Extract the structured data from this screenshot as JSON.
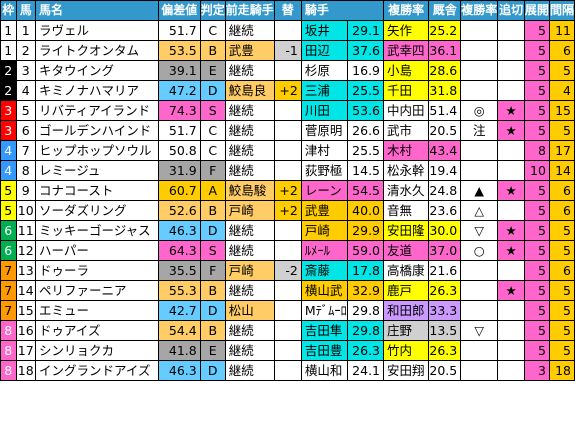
{
  "colors": {
    "header_bg": "#3399cc",
    "rank_S": "#ff66cc",
    "rank_A": "#ffcc00",
    "rank_B": "#ffcc66",
    "rank_C": "#ffffff",
    "rank_D": "#66ccff",
    "rank_F": "#a6a6a6",
    "jockey_top": "#00e5e5",
    "jockey_mid": "#ffcc00",
    "jockey_pink": "#ff66cc",
    "jockey_lilac": "#cc99ff",
    "trainer_top": "#ffcc00",
    "trainer_mid": "#ff66cc",
    "trainer_gray": "#d0d0d0",
    "trainer_yellow": "#ffff00",
    "pos_top": "#ff66cc",
    "pos_mid": "#ffcc00",
    "gap_top": "#ffcc00",
    "tenkai_bg": "#ff66cc"
  },
  "header": {
    "waku": "枠",
    "uma": "馬",
    "name": "馬名",
    "hensa": "偏差値",
    "hantei": "判定",
    "zenso": "前走騎手",
    "kawari": "替",
    "kishu": "騎手",
    "kishu_rate": "複勝率",
    "kyusha": "厩舎",
    "kyusha_rate": "複勝率",
    "oikiri": "追切",
    "tenkai": "展開",
    "kankaku": "間隔"
  },
  "rows": [
    {
      "waku": "1",
      "uma": "1",
      "name": "ラヴェル",
      "hensa": "51.7",
      "hantei": "C",
      "zenso": "継続",
      "kawari": "",
      "kishu": "坂井",
      "kishu_rate": "29.1",
      "kyusha": "矢作",
      "kyusha_rate": "25.2",
      "oikiri": "",
      "tenkai": "",
      "pos": "5",
      "gap": "11"
    },
    {
      "waku": "1",
      "uma": "2",
      "name": "ライトクオンタム",
      "hensa": "53.5",
      "hantei": "B",
      "zenso": "武豊",
      "kawari": "-1",
      "kishu": "田辺",
      "kishu_rate": "37.6",
      "kyusha": "武幸四",
      "kyusha_rate": "36.1",
      "oikiri": "",
      "tenkai": "",
      "pos": "5",
      "gap": "6"
    },
    {
      "waku": "2",
      "uma": "3",
      "name": "キタウイング",
      "hensa": "39.1",
      "hantei": "E",
      "zenso": "継続",
      "kawari": "",
      "kishu": "杉原",
      "kishu_rate": "16.9",
      "kyusha": "小島",
      "kyusha_rate": "28.6",
      "oikiri": "",
      "tenkai": "",
      "pos": "5",
      "gap": "5"
    },
    {
      "waku": "2",
      "uma": "4",
      "name": "キミノナハマリア",
      "hensa": "47.2",
      "hantei": "D",
      "zenso": "鮫島良",
      "kawari": "+2",
      "kishu": "三浦",
      "kishu_rate": "25.5",
      "kyusha": "千田",
      "kyusha_rate": "31.8",
      "oikiri": "",
      "tenkai": "",
      "pos": "5",
      "gap": "4"
    },
    {
      "waku": "3",
      "uma": "5",
      "name": "リバティアイランド",
      "hensa": "74.3",
      "hantei": "S",
      "zenso": "継続",
      "kawari": "",
      "kishu": "川田",
      "kishu_rate": "53.6",
      "kyusha": "中内田",
      "kyusha_rate": "51.4",
      "oikiri": "◎",
      "tenkai": "★",
      "pos": "5",
      "gap": "15"
    },
    {
      "waku": "3",
      "uma": "6",
      "name": "ゴールデンハインド",
      "hensa": "51.7",
      "hantei": "C",
      "zenso": "継続",
      "kawari": "",
      "kishu": "菅原明",
      "kishu_rate": "26.6",
      "kyusha": "武市",
      "kyusha_rate": "20.5",
      "oikiri": "注",
      "tenkai": "★",
      "pos": "5",
      "gap": "5"
    },
    {
      "waku": "4",
      "uma": "7",
      "name": "ヒップホップソウル",
      "hensa": "50.8",
      "hantei": "C",
      "zenso": "継続",
      "kawari": "",
      "kishu": "津村",
      "kishu_rate": "25.5",
      "kyusha": "木村",
      "kyusha_rate": "43.4",
      "oikiri": "",
      "tenkai": "",
      "pos": "8",
      "gap": "17"
    },
    {
      "waku": "4",
      "uma": "8",
      "name": "レミージュ",
      "hensa": "31.9",
      "hantei": "F",
      "zenso": "継続",
      "kawari": "",
      "kishu": "荻野極",
      "kishu_rate": "14.5",
      "kyusha": "松永幹",
      "kyusha_rate": "19.4",
      "oikiri": "",
      "tenkai": "",
      "pos": "10",
      "gap": "14"
    },
    {
      "waku": "5",
      "uma": "9",
      "name": "コナコースト",
      "hensa": "60.7",
      "hantei": "A",
      "zenso": "鮫島駿",
      "kawari": "+2",
      "kishu": "レーン",
      "kishu_rate": "54.5",
      "kyusha": "清水久",
      "kyusha_rate": "24.8",
      "oikiri": "▲",
      "tenkai": "★",
      "pos": "5",
      "gap": "6"
    },
    {
      "waku": "5",
      "uma": "10",
      "name": "ソーダズリング",
      "hensa": "52.6",
      "hantei": "B",
      "zenso": "戸崎",
      "kawari": "+2",
      "kishu": "武豊",
      "kishu_rate": "40.0",
      "kyusha": "音無",
      "kyusha_rate": "23.6",
      "oikiri": "△",
      "tenkai": "",
      "pos": "5",
      "gap": "6"
    },
    {
      "waku": "6",
      "uma": "11",
      "name": "ミッキーゴージャス",
      "hensa": "46.3",
      "hantei": "D",
      "zenso": "継続",
      "kawari": "",
      "kishu": "戸崎",
      "kishu_rate": "29.9",
      "kyusha": "安田隆",
      "kyusha_rate": "30.0",
      "oikiri": "▽",
      "tenkai": "★",
      "pos": "5",
      "gap": "5"
    },
    {
      "waku": "6",
      "uma": "12",
      "name": "ハーパー",
      "hensa": "64.3",
      "hantei": "S",
      "zenso": "継続",
      "kawari": "",
      "kishu": "ﾙﾒｰﾙ",
      "kishu_rate": "59.0",
      "kyusha": "友道",
      "kyusha_rate": "37.0",
      "oikiri": "○",
      "tenkai": "★",
      "pos": "5",
      "gap": "5"
    },
    {
      "waku": "7",
      "uma": "13",
      "name": "ドゥーラ",
      "hensa": "35.5",
      "hantei": "F",
      "zenso": "戸崎",
      "kawari": "-2",
      "kishu": "斎藤",
      "kishu_rate": "17.8",
      "kyusha": "高橋康",
      "kyusha_rate": "21.6",
      "oikiri": "",
      "tenkai": "",
      "pos": "5",
      "gap": "6"
    },
    {
      "waku": "7",
      "uma": "14",
      "name": "ペリファーニア",
      "hensa": "55.3",
      "hantei": "B",
      "zenso": "継続",
      "kawari": "",
      "kishu": "横山武",
      "kishu_rate": "32.9",
      "kyusha": "鹿戸",
      "kyusha_rate": "26.3",
      "oikiri": "",
      "tenkai": "★",
      "pos": "5",
      "gap": "5"
    },
    {
      "waku": "7",
      "uma": "15",
      "name": "エミュー",
      "hensa": "42.7",
      "hantei": "D",
      "zenso": "松山",
      "kawari": "",
      "kishu": "Mﾃﾞﾑｰﾛ",
      "kishu_rate": "29.8",
      "kyusha": "和田郎",
      "kyusha_rate": "33.3",
      "oikiri": "",
      "tenkai": "",
      "pos": "5",
      "gap": "5"
    },
    {
      "waku": "8",
      "uma": "16",
      "name": "ドゥアイズ",
      "hensa": "54.4",
      "hantei": "B",
      "zenso": "継続",
      "kawari": "",
      "kishu": "吉田隼",
      "kishu_rate": "29.8",
      "kyusha": "庄野",
      "kyusha_rate": "13.5",
      "oikiri": "▽",
      "tenkai": "",
      "pos": "5",
      "gap": "5"
    },
    {
      "waku": "8",
      "uma": "17",
      "name": "シンリョクカ",
      "hensa": "41.8",
      "hantei": "E",
      "zenso": "継続",
      "kawari": "",
      "kishu": "吉田豊",
      "kishu_rate": "26.3",
      "kyusha": "竹内",
      "kyusha_rate": "26.3",
      "oikiri": "",
      "tenkai": "",
      "pos": "5",
      "gap": "5"
    },
    {
      "waku": "8",
      "uma": "18",
      "name": "イングランドアイズ",
      "hensa": "46.3",
      "hantei": "D",
      "zenso": "継続",
      "kawari": "",
      "kishu": "横山和",
      "kishu_rate": "24.1",
      "kyusha": "安田翔",
      "kyusha_rate": "20.5",
      "oikiri": "",
      "tenkai": "",
      "pos": "3",
      "gap": "18"
    }
  ]
}
